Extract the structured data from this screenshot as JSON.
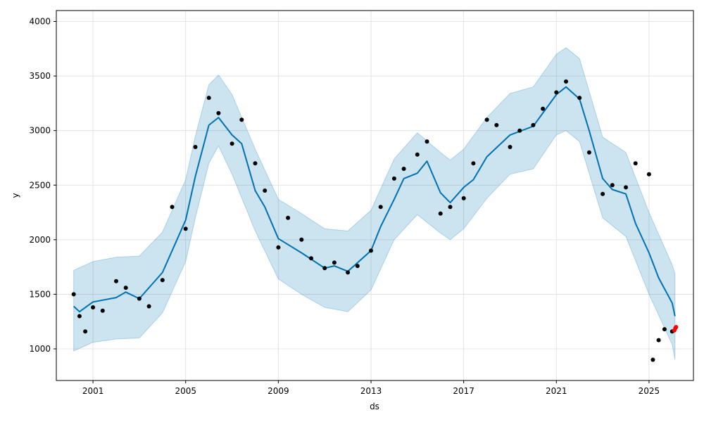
{
  "chart_data": {
    "type": "line",
    "xlabel": "ds",
    "ylabel": "y",
    "x_ticks": [
      "2001",
      "2005",
      "2009",
      "2013",
      "2017",
      "2021",
      "2025"
    ],
    "y_ticks": [
      1000,
      1500,
      2000,
      2500,
      3000,
      3500,
      4000
    ],
    "xlim": [
      "1999-06-01",
      "2026-12-01"
    ],
    "ylim": [
      710,
      4100
    ],
    "grid": true,
    "colors": {
      "forecast": "#0072B2",
      "interval": "#0072B2",
      "observed": "#000000",
      "recent": "#ff0000"
    },
    "series": [
      {
        "type": "band",
        "lower": [
          [
            "2000-03-01",
            980
          ],
          [
            "2001-01-01",
            1060
          ],
          [
            "2002-01-01",
            1090
          ],
          [
            "2003-01-01",
            1100
          ],
          [
            "2004-01-01",
            1330
          ],
          [
            "2005-01-01",
            1800
          ],
          [
            "2005-06-01",
            2200
          ],
          [
            "2006-01-01",
            2700
          ],
          [
            "2006-06-01",
            2860
          ],
          [
            "2007-01-01",
            2600
          ],
          [
            "2008-01-01",
            2080
          ],
          [
            "2009-01-01",
            1640
          ],
          [
            "2010-01-01",
            1500
          ],
          [
            "2011-01-01",
            1380
          ],
          [
            "2012-01-01",
            1340
          ],
          [
            "2013-01-01",
            1540
          ],
          [
            "2014-01-01",
            2000
          ],
          [
            "2015-01-01",
            2230
          ],
          [
            "2016-01-01",
            2060
          ],
          [
            "2016-06-01",
            2000
          ],
          [
            "2017-01-01",
            2100
          ],
          [
            "2018-01-01",
            2380
          ],
          [
            "2019-01-01",
            2600
          ],
          [
            "2020-01-01",
            2650
          ],
          [
            "2021-01-01",
            2960
          ],
          [
            "2021-06-01",
            3000
          ],
          [
            "2022-01-01",
            2900
          ],
          [
            "2023-01-01",
            2200
          ],
          [
            "2024-01-01",
            2030
          ],
          [
            "2025-01-01",
            1500
          ],
          [
            "2026-01-01",
            1040
          ],
          [
            "2026-02-15",
            900
          ]
        ],
        "upper": [
          [
            "2000-03-01",
            1720
          ],
          [
            "2001-01-01",
            1800
          ],
          [
            "2002-01-01",
            1840
          ],
          [
            "2003-01-01",
            1850
          ],
          [
            "2004-01-01",
            2070
          ],
          [
            "2005-01-01",
            2550
          ],
          [
            "2005-06-01",
            2950
          ],
          [
            "2006-01-01",
            3420
          ],
          [
            "2006-06-01",
            3510
          ],
          [
            "2007-01-01",
            3330
          ],
          [
            "2008-01-01",
            2830
          ],
          [
            "2009-01-01",
            2370
          ],
          [
            "2010-01-01",
            2240
          ],
          [
            "2011-01-01",
            2100
          ],
          [
            "2012-01-01",
            2080
          ],
          [
            "2013-01-01",
            2270
          ],
          [
            "2014-01-01",
            2740
          ],
          [
            "2015-01-01",
            2980
          ],
          [
            "2016-01-01",
            2800
          ],
          [
            "2016-06-01",
            2730
          ],
          [
            "2017-01-01",
            2830
          ],
          [
            "2018-01-01",
            3120
          ],
          [
            "2019-01-01",
            3340
          ],
          [
            "2020-01-01",
            3400
          ],
          [
            "2021-01-01",
            3700
          ],
          [
            "2021-06-01",
            3760
          ],
          [
            "2022-01-01",
            3660
          ],
          [
            "2023-01-01",
            2940
          ],
          [
            "2024-01-01",
            2800
          ],
          [
            "2025-01-01",
            2250
          ],
          [
            "2026-01-01",
            1770
          ],
          [
            "2026-02-15",
            1690
          ]
        ]
      },
      {
        "type": "line",
        "points": [
          [
            "2000-03-01",
            1390
          ],
          [
            "2000-06-01",
            1340
          ],
          [
            "2001-01-01",
            1430
          ],
          [
            "2002-01-01",
            1470
          ],
          [
            "2002-06-01",
            1520
          ],
          [
            "2003-01-01",
            1460
          ],
          [
            "2004-01-01",
            1700
          ],
          [
            "2005-01-01",
            2180
          ],
          [
            "2005-06-01",
            2580
          ],
          [
            "2006-01-01",
            3050
          ],
          [
            "2006-06-01",
            3120
          ],
          [
            "2007-01-01",
            2960
          ],
          [
            "2007-06-01",
            2880
          ],
          [
            "2008-01-01",
            2450
          ],
          [
            "2008-06-01",
            2300
          ],
          [
            "2009-01-01",
            2010
          ],
          [
            "2010-01-01",
            1880
          ],
          [
            "2011-01-01",
            1740
          ],
          [
            "2011-06-01",
            1760
          ],
          [
            "2012-01-01",
            1710
          ],
          [
            "2013-01-01",
            1900
          ],
          [
            "2013-06-01",
            2120
          ],
          [
            "2014-01-01",
            2370
          ],
          [
            "2014-06-01",
            2560
          ],
          [
            "2015-01-01",
            2610
          ],
          [
            "2015-06-01",
            2720
          ],
          [
            "2016-01-01",
            2430
          ],
          [
            "2016-06-01",
            2340
          ],
          [
            "2017-01-01",
            2480
          ],
          [
            "2017-06-01",
            2550
          ],
          [
            "2018-01-01",
            2760
          ],
          [
            "2019-01-01",
            2960
          ],
          [
            "2020-01-01",
            3040
          ],
          [
            "2021-01-01",
            3330
          ],
          [
            "2021-06-01",
            3400
          ],
          [
            "2022-01-01",
            3290
          ],
          [
            "2022-06-01",
            3000
          ],
          [
            "2023-01-01",
            2560
          ],
          [
            "2023-06-01",
            2460
          ],
          [
            "2024-01-01",
            2420
          ],
          [
            "2024-06-01",
            2150
          ],
          [
            "2025-01-01",
            1880
          ],
          [
            "2025-06-01",
            1650
          ],
          [
            "2026-01-01",
            1420
          ],
          [
            "2026-02-15",
            1300
          ]
        ]
      },
      {
        "type": "scatter",
        "name": "observed",
        "points": [
          [
            "2000-03-01",
            1500
          ],
          [
            "2000-06-01",
            1300
          ],
          [
            "2000-09-01",
            1160
          ],
          [
            "2001-01-01",
            1380
          ],
          [
            "2001-06-01",
            1350
          ],
          [
            "2002-01-01",
            1620
          ],
          [
            "2002-06-01",
            1560
          ],
          [
            "2003-01-01",
            1460
          ],
          [
            "2003-06-01",
            1390
          ],
          [
            "2004-01-01",
            1630
          ],
          [
            "2004-06-01",
            2300
          ],
          [
            "2005-01-01",
            2100
          ],
          [
            "2005-06-01",
            2850
          ],
          [
            "2006-01-01",
            3300
          ],
          [
            "2006-06-01",
            3160
          ],
          [
            "2007-01-01",
            2880
          ],
          [
            "2007-06-01",
            3100
          ],
          [
            "2008-01-01",
            2700
          ],
          [
            "2008-06-01",
            2450
          ],
          [
            "2009-01-01",
            1930
          ],
          [
            "2009-06-01",
            2200
          ],
          [
            "2010-01-01",
            2000
          ],
          [
            "2010-06-01",
            1830
          ],
          [
            "2011-01-01",
            1740
          ],
          [
            "2011-06-01",
            1790
          ],
          [
            "2012-01-01",
            1700
          ],
          [
            "2012-06-01",
            1760
          ],
          [
            "2013-01-01",
            1900
          ],
          [
            "2013-06-01",
            2300
          ],
          [
            "2014-01-01",
            2560
          ],
          [
            "2014-06-01",
            2650
          ],
          [
            "2015-01-01",
            2780
          ],
          [
            "2015-06-01",
            2900
          ],
          [
            "2016-01-01",
            2240
          ],
          [
            "2016-06-01",
            2300
          ],
          [
            "2017-01-01",
            2380
          ],
          [
            "2017-06-01",
            2700
          ],
          [
            "2018-01-01",
            3100
          ],
          [
            "2018-06-01",
            3050
          ],
          [
            "2019-01-01",
            2850
          ],
          [
            "2019-06-01",
            3000
          ],
          [
            "2020-01-01",
            3050
          ],
          [
            "2020-06-01",
            3200
          ],
          [
            "2021-01-01",
            3350
          ],
          [
            "2021-06-01",
            3450
          ],
          [
            "2022-01-01",
            3300
          ],
          [
            "2022-06-01",
            2800
          ],
          [
            "2023-01-01",
            2420
          ],
          [
            "2023-06-01",
            2500
          ],
          [
            "2024-01-01",
            2480
          ],
          [
            "2024-06-01",
            2700
          ],
          [
            "2025-01-01",
            2600
          ],
          [
            "2025-03-01",
            900
          ],
          [
            "2025-06-01",
            1080
          ],
          [
            "2025-09-01",
            1180
          ],
          [
            "2026-01-01",
            1160
          ]
        ]
      },
      {
        "type": "scatter",
        "name": "recent",
        "points": [
          [
            "2026-02-05",
            1170
          ],
          [
            "2026-02-20",
            1190
          ],
          [
            "2026-03-01",
            1200
          ]
        ]
      }
    ]
  }
}
